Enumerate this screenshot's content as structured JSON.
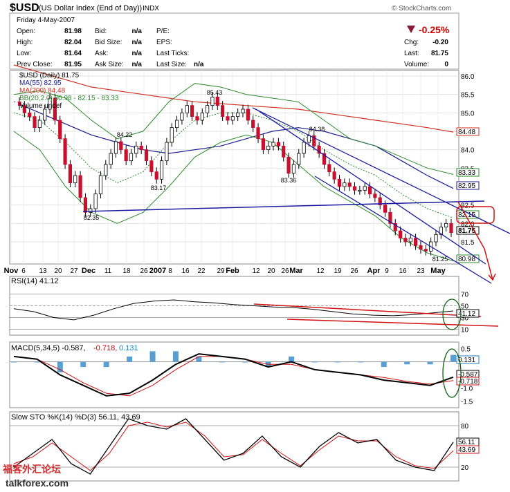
{
  "header": {
    "symbol": "$USD",
    "description": "(US Dollar Index (End of Day))",
    "exchange": "INDX",
    "credit": "© StockCharts.com",
    "date": "Friday  4-May-2007",
    "change_pct": "-0.25%",
    "quote_labels": [
      "Open:",
      "High:",
      "Low:",
      "Prev Close:"
    ],
    "quote_values": [
      "81.98",
      "82.04",
      "81.64",
      "81.95"
    ],
    "bid_labels": [
      "Bid:",
      "Bid Size:",
      "Ask:",
      "Ask Size:"
    ],
    "bid_values": [
      "n/a",
      "n/a",
      "n/a",
      "n/a"
    ],
    "pe_labels": [
      "P/E:",
      "EPS:",
      "Last Ticks:",
      "Last Size:"
    ],
    "last_size_value": "n/a",
    "chg_labels": [
      "Chg:",
      "Last:",
      "Volume:"
    ],
    "chg_values": [
      "-0.20",
      "81.75",
      "0"
    ]
  },
  "price_panel": {
    "legend": [
      "$USD (Daily) 81.75",
      "MA(55) 82.95",
      "MA(200) 84.48",
      "BB(20,2.0) 80.98 - 82.15 - 83.33",
      "Volume undef"
    ],
    "y_ticks": [
      "86.0",
      "85.5",
      "85.0",
      "84.5",
      "84.0",
      "83.5",
      "83.0",
      "82.5",
      "82.0",
      "81.5"
    ],
    "price_boxes": [
      "84.48",
      "83.33",
      "82.95",
      "82.15",
      "81.75",
      "80.98"
    ],
    "annotations": [
      "85.43",
      "84.22",
      "84.38",
      "83.36",
      "83.17",
      "82.35",
      "81.25"
    ]
  },
  "x_axis": [
    "Nov",
    "6",
    "13",
    "20",
    "27",
    "Dec",
    "11",
    "18",
    "26",
    "2007",
    "8",
    "16",
    "22",
    "29",
    "Feb",
    "12",
    "20",
    "26",
    "Mar",
    "12",
    "19",
    "26",
    "Apr",
    "9",
    "16",
    "23",
    "May"
  ],
  "rsi_panel": {
    "legend": "RSI(14) 41.12",
    "y_ticks": [
      "70",
      "50",
      "30",
      "10"
    ],
    "box": "41.12"
  },
  "macd_panel": {
    "legend_prefix": "MACD(5,34,5) -0.587,",
    "legend_signal": "-0.718,",
    "legend_hist": "0.131",
    "y_ticks": [
      "0.5",
      "-0.5",
      "-1.0",
      "-1.5"
    ],
    "boxes": [
      "0.131",
      "-0.587",
      "-0.718"
    ]
  },
  "sto_panel": {
    "legend": "Slow STO %K(14) %D(3) 56.11, 43.69",
    "y_ticks": [
      "80",
      "20"
    ],
    "boxes": [
      "56.11",
      "43.69"
    ]
  },
  "watermark": {
    "line1": "福客外汇论坛",
    "line2": "talkforex.com"
  },
  "chart_data": {
    "type": "line",
    "title": "$USD (US Dollar Index (End of Day))",
    "x_range": [
      "2006-11-01",
      "2007-05-04"
    ],
    "ylim": [
      80.9,
      86.15
    ],
    "series": [
      {
        "name": "$USD (Daily)",
        "values": [
          85.2,
          85.0,
          84.9,
          84.6,
          84.8,
          85.1,
          85.4,
          84.8,
          84.3,
          83.6,
          83.1,
          83.3,
          82.7,
          82.3,
          82.4,
          82.8,
          83.3,
          83.6,
          83.9,
          84.22,
          84.0,
          83.7,
          83.9,
          84.1,
          84.0,
          83.7,
          83.4,
          83.2,
          83.7,
          84.2,
          84.6,
          84.8,
          85.0,
          85.2,
          84.9,
          84.8,
          85.0,
          85.2,
          85.43,
          85.2,
          84.9,
          84.8,
          84.9,
          85.0,
          85.1,
          84.8,
          84.6,
          84.3,
          84.0,
          84.1,
          84.2,
          84.1,
          83.8,
          83.36,
          83.6,
          83.9,
          84.2,
          84.38,
          84.1,
          83.9,
          83.6,
          83.4,
          83.2,
          83.0,
          83.1,
          83.0,
          82.9,
          82.9,
          83.0,
          82.8,
          82.7,
          82.5,
          82.3,
          82.0,
          81.8,
          81.6,
          81.5,
          81.6,
          81.4,
          81.3,
          81.25,
          81.5,
          81.7,
          81.9,
          82.0,
          81.75
        ]
      },
      {
        "name": "MA(55)",
        "values": [
          85.3,
          85.0,
          84.7,
          84.4,
          84.2,
          84.0,
          83.9,
          84.0,
          84.1,
          84.3,
          84.5,
          84.6,
          84.5,
          84.3,
          84.1,
          83.7,
          83.3,
          82.95
        ]
      },
      {
        "name": "MA(200)",
        "values": [
          86.3,
          86.1,
          85.9,
          85.7,
          85.6,
          85.5,
          85.4,
          85.3,
          85.25,
          85.2,
          85.15,
          85.1,
          85.0,
          84.9,
          84.8,
          84.7,
          84.6,
          84.48
        ]
      },
      {
        "name": "BB upper",
        "values": [
          85.5,
          85.6,
          85.4,
          84.8,
          84.3,
          84.5,
          85.3,
          85.8,
          85.7,
          85.5,
          85.4,
          85.3,
          84.8,
          84.3,
          84.1,
          83.8,
          83.5,
          83.33
        ]
      },
      {
        "name": "BB mid",
        "values": [
          85.0,
          84.8,
          84.2,
          83.5,
          83.1,
          83.4,
          84.2,
          84.8,
          85.0,
          85.0,
          84.8,
          84.5,
          84.0,
          83.6,
          83.3,
          82.8,
          82.4,
          82.15
        ]
      },
      {
        "name": "BB lower",
        "values": [
          84.5,
          84.0,
          83.0,
          82.3,
          82.0,
          82.3,
          83.0,
          83.8,
          84.2,
          84.4,
          84.2,
          83.6,
          83.0,
          82.6,
          82.2,
          81.6,
          81.2,
          80.98
        ]
      },
      {
        "name": "RSI(14)",
        "values": [
          45,
          40,
          30,
          26,
          34,
          45,
          54,
          58,
          60,
          57,
          55,
          52,
          50,
          48,
          47,
          44,
          40,
          36,
          34,
          33,
          35,
          38,
          41.12
        ]
      },
      {
        "name": "MACD",
        "values": [
          0.2,
          0.1,
          -0.5,
          -0.9,
          -1.3,
          -1.2,
          -0.7,
          -0.1,
          0.3,
          0.2,
          0.1,
          -0.2,
          0.0,
          -0.3,
          -0.4,
          -0.5,
          -0.7,
          -0.8,
          -0.9,
          -0.587
        ]
      },
      {
        "name": "Signal",
        "values": [
          0.2,
          0.1,
          -0.3,
          -0.8,
          -1.2,
          -1.3,
          -0.9,
          -0.3,
          0.2,
          0.2,
          0.1,
          -0.1,
          -0.1,
          -0.3,
          -0.4,
          -0.5,
          -0.6,
          -0.75,
          -0.85,
          -0.718
        ]
      },
      {
        "name": "Slow STO %K",
        "values": [
          20,
          40,
          60,
          25,
          10,
          50,
          90,
          80,
          75,
          90,
          60,
          30,
          40,
          65,
          35,
          20,
          50,
          70,
          55,
          60,
          30,
          20,
          15,
          56.11
        ]
      },
      {
        "name": "Slow STO %D",
        "values": [
          25,
          35,
          55,
          35,
          15,
          40,
          80,
          85,
          78,
          85,
          65,
          35,
          38,
          60,
          40,
          22,
          45,
          65,
          58,
          58,
          35,
          22,
          18,
          43.69
        ]
      }
    ]
  }
}
